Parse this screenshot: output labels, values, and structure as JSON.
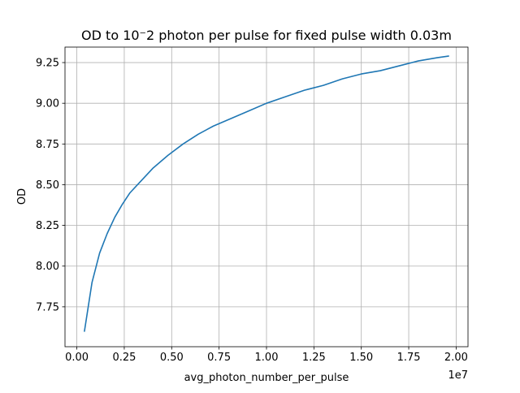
{
  "chart_data": {
    "type": "line",
    "title": "OD to 10⁻2 photon per pulse for fixed pulse width 0.03m",
    "xlabel": "avg_photon_number_per_pulse",
    "ylabel": "OD",
    "x_offset_text": "1e7",
    "xlim": [
      -0.0625,
      2.0625
    ],
    "ylim": [
      7.505,
      9.345
    ],
    "xticks": [
      0.0,
      0.25,
      0.5,
      0.75,
      1.0,
      1.25,
      1.5,
      1.75,
      2.0
    ],
    "xtick_labels": [
      "0.00",
      "0.25",
      "0.50",
      "0.75",
      "1.00",
      "1.25",
      "1.50",
      "1.75",
      "2.00"
    ],
    "yticks": [
      7.75,
      8.0,
      8.25,
      8.5,
      8.75,
      9.0,
      9.25
    ],
    "ytick_labels": [
      "7.75",
      "8.00",
      "8.25",
      "8.50",
      "8.75",
      "9.00",
      "9.25"
    ],
    "grid": true,
    "line_color": "#1f77b4",
    "series": [
      {
        "x": [
          0.04,
          0.08,
          0.12,
          0.16,
          0.2,
          0.24,
          0.28,
          0.32,
          0.36,
          0.4,
          0.48,
          0.56,
          0.64,
          0.72,
          0.8,
          0.9,
          1.0,
          1.1,
          1.2,
          1.3,
          1.4,
          1.5,
          1.6,
          1.7,
          1.8,
          1.9,
          1.96
        ],
        "y": [
          7.6,
          7.9,
          8.08,
          8.2,
          8.3,
          8.38,
          8.45,
          8.5,
          8.55,
          8.6,
          8.68,
          8.75,
          8.81,
          8.86,
          8.9,
          8.95,
          9.0,
          9.04,
          9.08,
          9.11,
          9.15,
          9.18,
          9.2,
          9.23,
          9.26,
          9.28,
          9.29
        ]
      }
    ]
  }
}
